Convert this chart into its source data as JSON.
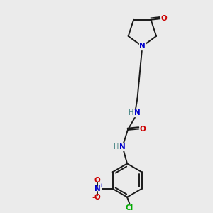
{
  "bg_color": "#ebebeb",
  "bond_color": "#1a1a1a",
  "N_color": "#0000cc",
  "O_color": "#cc0000",
  "Cl_color": "#00aa00",
  "H_color": "#4a8888",
  "fig_size": [
    3.0,
    3.0
  ],
  "dpi": 100,
  "xlim": [
    0,
    10
  ],
  "ylim": [
    0,
    10
  ]
}
